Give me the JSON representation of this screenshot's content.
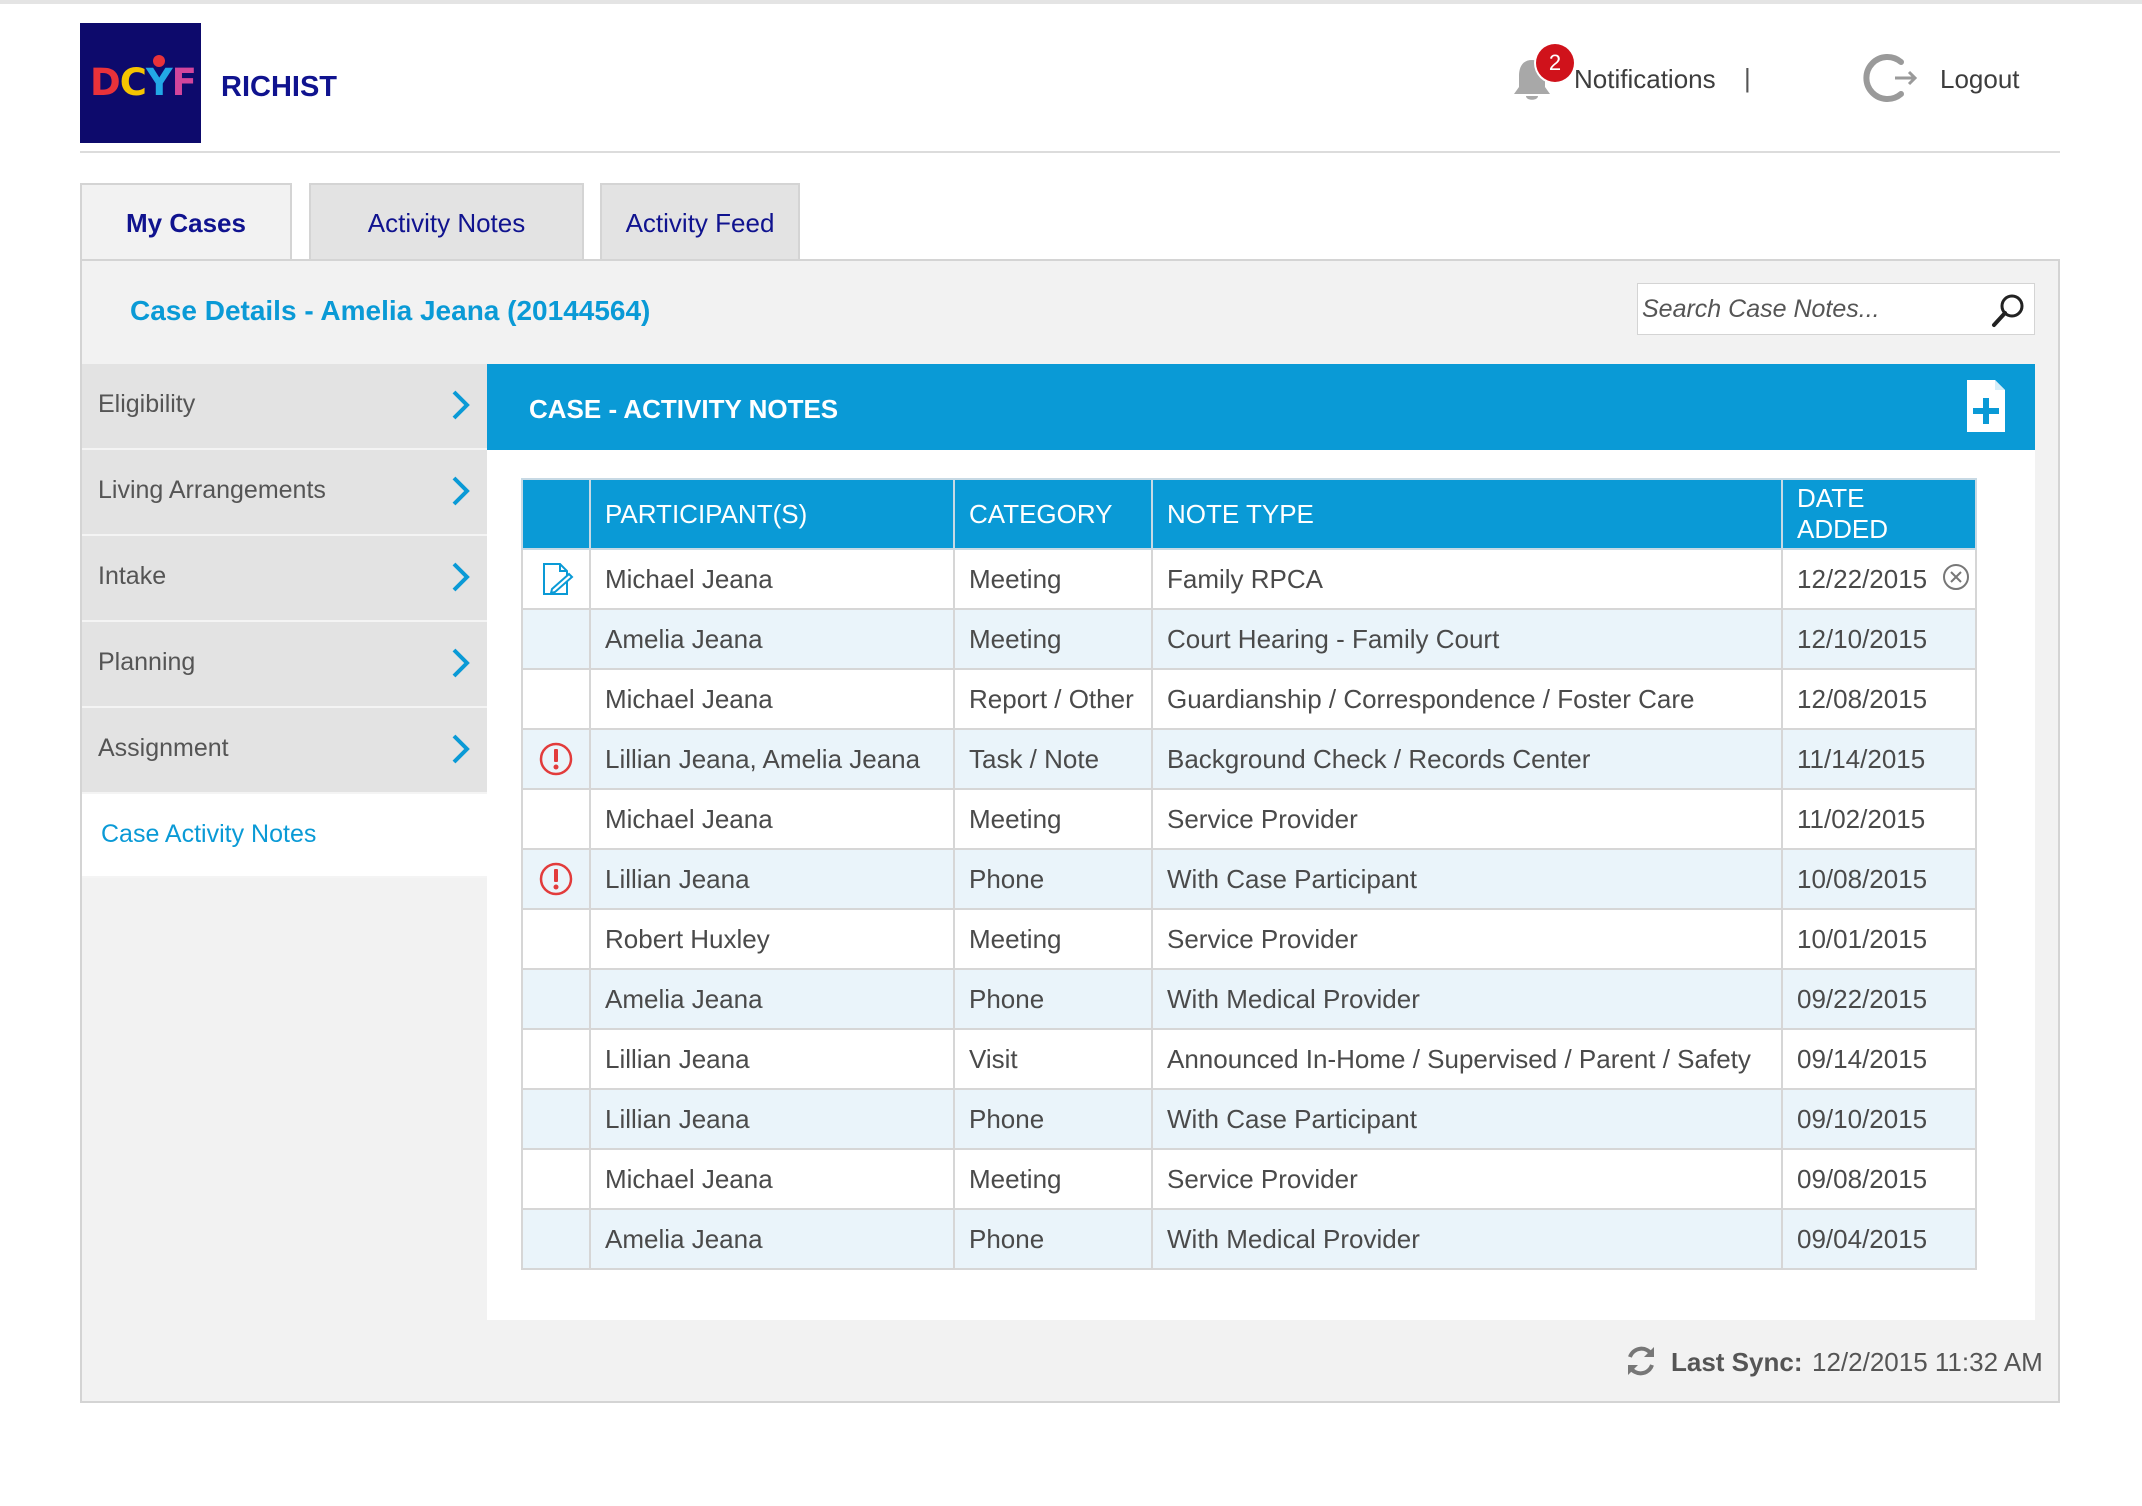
{
  "header": {
    "logo_letters": [
      "D",
      "C",
      "Y",
      "F"
    ],
    "app_name": "RICHIST",
    "notifications_count": "2",
    "notifications_label": "Notifications",
    "separator": "|",
    "logout_label": "Logout"
  },
  "tabs": [
    {
      "label": "My Cases",
      "active": true
    },
    {
      "label": "Activity Notes",
      "active": false
    },
    {
      "label": "Activity Feed",
      "active": false
    }
  ],
  "case": {
    "title": "Case Details - Amelia Jeana (20144564)"
  },
  "search": {
    "placeholder": "Search Case Notes..."
  },
  "sidebar": {
    "items": [
      {
        "label": "Eligibility"
      },
      {
        "label": "Living Arrangements"
      },
      {
        "label": "Intake"
      },
      {
        "label": "Planning"
      },
      {
        "label": "Assignment"
      },
      {
        "label": "Case Activity Notes",
        "active": true
      }
    ]
  },
  "section": {
    "title": "CASE - ACTIVITY NOTES"
  },
  "table": {
    "headers": [
      "PARTICIPANT(S)",
      "CATEGORY",
      "NOTE TYPE",
      "DATE ADDED"
    ],
    "rows": [
      {
        "icon": "edit-note-icon",
        "participants": "Michael Jeana",
        "category": "Meeting",
        "note_type": "Family RPCA",
        "date": "12/22/2015",
        "removable": true
      },
      {
        "icon": "",
        "participants": "Amelia Jeana",
        "category": "Meeting",
        "note_type": "Court Hearing - Family Court",
        "date": "12/10/2015"
      },
      {
        "icon": "",
        "participants": "Michael Jeana",
        "category": "Report / Other",
        "note_type": "Guardianship / Correspondence / Foster Care",
        "date": "12/08/2015"
      },
      {
        "icon": "alert-icon",
        "participants": "Lillian Jeana, Amelia Jeana",
        "category": "Task / Note",
        "note_type": "Background Check / Records Center",
        "date": "11/14/2015"
      },
      {
        "icon": "",
        "participants": "Michael Jeana",
        "category": "Meeting",
        "note_type": "Service Provider",
        "date": "11/02/2015"
      },
      {
        "icon": "alert-icon",
        "participants": "Lillian Jeana",
        "category": "Phone",
        "note_type": "With Case Participant",
        "date": "10/08/2015"
      },
      {
        "icon": "",
        "participants": "Robert Huxley",
        "category": "Meeting",
        "note_type": "Service Provider",
        "date": "10/01/2015"
      },
      {
        "icon": "",
        "participants": "Amelia Jeana",
        "category": "Phone",
        "note_type": "With Medical Provider",
        "date": "09/22/2015"
      },
      {
        "icon": "",
        "participants": "Lillian Jeana",
        "category": "Visit",
        "note_type": "Announced In-Home / Supervised / Parent / Safety",
        "date": "09/14/2015"
      },
      {
        "icon": "",
        "participants": "Lillian Jeana",
        "category": "Phone",
        "note_type": "With Case Participant",
        "date": "09/10/2015"
      },
      {
        "icon": "",
        "participants": "Michael Jeana",
        "category": "Meeting",
        "note_type": "Service Provider",
        "date": "09/08/2015"
      },
      {
        "icon": "",
        "participants": "Amelia Jeana",
        "category": "Phone",
        "note_type": "With Medical Provider",
        "date": "09/04/2015"
      }
    ]
  },
  "sync": {
    "label": "Last Sync:",
    "value": "12/2/2015 11:32 AM"
  },
  "colors": {
    "accent": "#0a9ad6",
    "brand_navy": "#10138f",
    "alert": "#e23b3b",
    "badge": "#d0121b"
  }
}
